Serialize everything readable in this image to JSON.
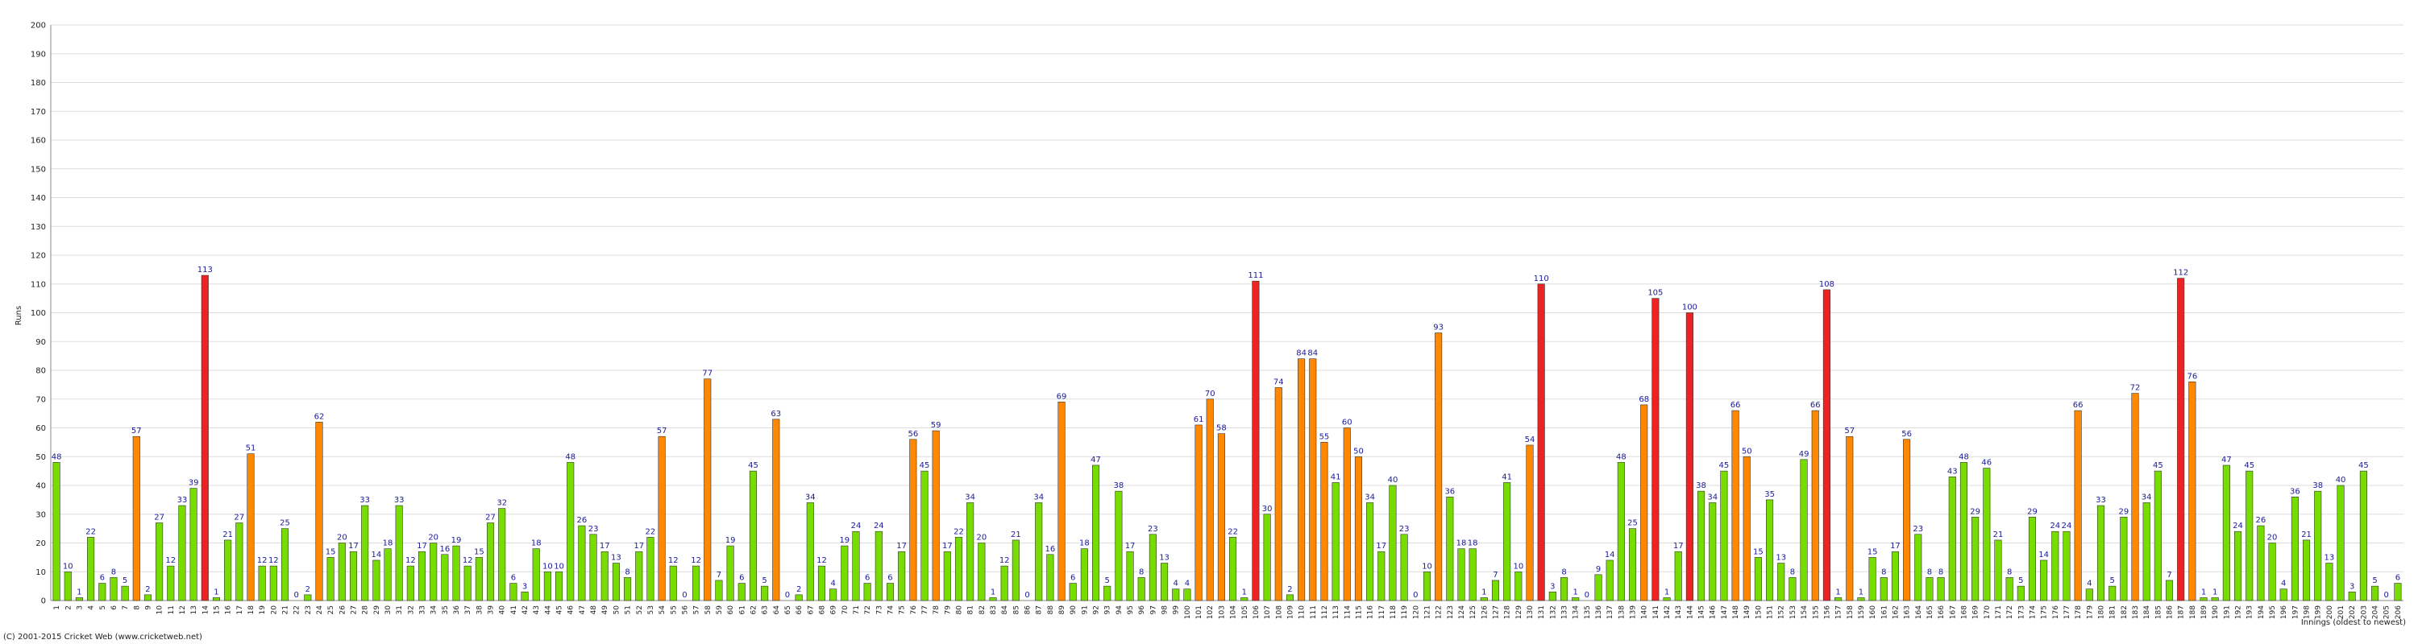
{
  "chart_data": {
    "type": "bar",
    "y_label": "Runs",
    "x_label": "Innings (oldest to newest)",
    "footer": "(C) 2001-2015 Cricket Web (www.cricketweb.net)",
    "categories": [
      1,
      2,
      3,
      4,
      5,
      6,
      7,
      8,
      9,
      10,
      11,
      12,
      13,
      14,
      15,
      16,
      17,
      18,
      19,
      20,
      21,
      22,
      23,
      24,
      25,
      26,
      27,
      28,
      29,
      30,
      31,
      32,
      33,
      34,
      35,
      36,
      37,
      38,
      39,
      40,
      41,
      42,
      43,
      44,
      45,
      46,
      47,
      48,
      49,
      50,
      51,
      52,
      53,
      54,
      55,
      56,
      57,
      58,
      59,
      60,
      61,
      62,
      63,
      64,
      65,
      66,
      67,
      68,
      69,
      70,
      71,
      72,
      73,
      74,
      75,
      76,
      77,
      78,
      79,
      80,
      81,
      82,
      83,
      84,
      85,
      86,
      87,
      88,
      89,
      90,
      91,
      92,
      93,
      94,
      95,
      96,
      97,
      98,
      99,
      100,
      101,
      102,
      103,
      104,
      105,
      106,
      107,
      108,
      109,
      110,
      111,
      112,
      113,
      114,
      115,
      116,
      117,
      118,
      119,
      120,
      121,
      122,
      123,
      124,
      125,
      126,
      127,
      128,
      129,
      130,
      131,
      132,
      133,
      134,
      135,
      136,
      137,
      138,
      139,
      140,
      141,
      142,
      143,
      144,
      145,
      146,
      147,
      148,
      149,
      150,
      151,
      152,
      153,
      154,
      155,
      156,
      157,
      158,
      159,
      160,
      161,
      162,
      163,
      164,
      165,
      166,
      167,
      168,
      169,
      170,
      171,
      172,
      173,
      174,
      175,
      176,
      177,
      178,
      179,
      180,
      181,
      182,
      183,
      184,
      185,
      186,
      187,
      188,
      189,
      190,
      191,
      192,
      193,
      194,
      195,
      196,
      197,
      198,
      199,
      200,
      201,
      202,
      203,
      204,
      205,
      206
    ],
    "values": [
      48,
      10,
      1,
      22,
      6,
      8,
      5,
      57,
      2,
      27,
      12,
      33,
      39,
      113,
      1,
      21,
      27,
      51,
      12,
      12,
      25,
      0,
      2,
      62,
      15,
      20,
      17,
      33,
      14,
      18,
      33,
      12,
      17,
      20,
      16,
      19,
      12,
      15,
      27,
      32,
      6,
      3,
      18,
      10,
      10,
      48,
      26,
      23,
      17,
      13,
      8,
      17,
      22,
      57,
      12,
      0,
      12,
      77,
      7,
      19,
      6,
      45,
      5,
      63,
      0,
      2,
      34,
      12,
      4,
      19,
      24,
      6,
      24,
      6,
      17,
      56,
      45,
      59,
      17,
      22,
      34,
      20,
      1,
      12,
      21,
      0,
      34,
      16,
      69,
      6,
      18,
      47,
      5,
      38,
      17,
      8,
      23,
      13,
      4,
      4,
      61,
      70,
      58,
      22,
      1,
      111,
      30,
      74,
      2,
      84,
      84,
      55,
      41,
      60,
      50,
      34,
      17,
      40,
      23,
      0,
      10,
      93,
      36,
      18,
      18,
      1,
      7,
      41,
      10,
      54,
      110,
      3,
      8,
      1,
      0,
      9,
      14,
      48,
      25,
      68,
      105,
      1,
      17,
      100,
      38,
      34,
      45,
      66,
      50,
      15,
      35,
      13,
      8,
      49,
      66,
      108,
      1,
      57,
      1,
      15,
      8,
      17,
      56,
      23,
      8,
      8,
      43,
      48,
      29,
      46,
      21,
      8,
      5,
      29,
      14,
      24,
      24,
      66,
      4,
      33,
      5,
      29,
      72,
      34,
      45,
      7,
      112,
      76,
      1,
      1,
      47,
      24,
      45,
      26,
      20,
      4,
      36,
      21,
      38,
      13,
      40,
      3,
      45,
      5,
      0,
      6
    ],
    "colors": [
      "#77dd00",
      "#77dd00",
      "#77dd00",
      "#77dd00",
      "#77dd00",
      "#77dd00",
      "#77dd00",
      "#ff8800",
      "#77dd00",
      "#77dd00",
      "#77dd00",
      "#77dd00",
      "#77dd00",
      "#ee2222",
      "#77dd00",
      "#77dd00",
      "#77dd00",
      "#ff8800",
      "#77dd00",
      "#77dd00",
      "#77dd00",
      "#77dd00",
      "#77dd00",
      "#ff8800",
      "#77dd00",
      "#77dd00",
      "#77dd00",
      "#77dd00",
      "#77dd00",
      "#77dd00",
      "#77dd00",
      "#77dd00",
      "#77dd00",
      "#77dd00",
      "#77dd00",
      "#77dd00",
      "#77dd00",
      "#77dd00",
      "#77dd00",
      "#77dd00",
      "#77dd00",
      "#77dd00",
      "#77dd00",
      "#77dd00",
      "#77dd00",
      "#77dd00",
      "#77dd00",
      "#77dd00",
      "#77dd00",
      "#77dd00",
      "#77dd00",
      "#77dd00",
      "#77dd00",
      "#ff8800",
      "#77dd00",
      "#77dd00",
      "#77dd00",
      "#ff8800",
      "#77dd00",
      "#77dd00",
      "#77dd00",
      "#77dd00",
      "#77dd00",
      "#ff8800",
      "#77dd00",
      "#77dd00",
      "#77dd00",
      "#77dd00",
      "#77dd00",
      "#77dd00",
      "#77dd00",
      "#77dd00",
      "#77dd00",
      "#77dd00",
      "#77dd00",
      "#ff8800",
      "#77dd00",
      "#ff8800",
      "#77dd00",
      "#77dd00",
      "#77dd00",
      "#77dd00",
      "#77dd00",
      "#77dd00",
      "#77dd00",
      "#77dd00",
      "#77dd00",
      "#77dd00",
      "#ff8800",
      "#77dd00",
      "#77dd00",
      "#77dd00",
      "#77dd00",
      "#77dd00",
      "#77dd00",
      "#77dd00",
      "#77dd00",
      "#77dd00",
      "#77dd00",
      "#77dd00",
      "#ff8800",
      "#ff8800",
      "#ff8800",
      "#77dd00",
      "#77dd00",
      "#ee2222",
      "#77dd00",
      "#ff8800",
      "#77dd00",
      "#ff8800",
      "#ff8800",
      "#ff8800",
      "#77dd00",
      "#ff8800",
      "#ff8800",
      "#77dd00",
      "#77dd00",
      "#77dd00",
      "#77dd00",
      "#77dd00",
      "#77dd00",
      "#ff8800",
      "#77dd00",
      "#77dd00",
      "#77dd00",
      "#77dd00",
      "#77dd00",
      "#77dd00",
      "#77dd00",
      "#ff8800",
      "#ee2222",
      "#77dd00",
      "#77dd00",
      "#77dd00",
      "#77dd00",
      "#77dd00",
      "#77dd00",
      "#77dd00",
      "#77dd00",
      "#ff8800",
      "#ee2222",
      "#77dd00",
      "#77dd00",
      "#ee2222",
      "#77dd00",
      "#77dd00",
      "#77dd00",
      "#ff8800",
      "#ff8800",
      "#77dd00",
      "#77dd00",
      "#77dd00",
      "#77dd00",
      "#77dd00",
      "#ff8800",
      "#ee2222",
      "#77dd00",
      "#ff8800",
      "#77dd00",
      "#77dd00",
      "#77dd00",
      "#77dd00",
      "#ff8800",
      "#77dd00",
      "#77dd00",
      "#77dd00",
      "#77dd00",
      "#77dd00",
      "#77dd00",
      "#77dd00",
      "#77dd00",
      "#77dd00",
      "#77dd00",
      "#77dd00",
      "#77dd00",
      "#77dd00",
      "#77dd00",
      "#ff8800",
      "#77dd00",
      "#77dd00",
      "#77dd00",
      "#77dd00",
      "#ff8800",
      "#77dd00",
      "#77dd00",
      "#77dd00",
      "#ee2222",
      "#ff8800",
      "#77dd00",
      "#77dd00",
      "#77dd00",
      "#77dd00",
      "#77dd00",
      "#77dd00",
      "#77dd00",
      "#77dd00",
      "#77dd00",
      "#77dd00",
      "#77dd00",
      "#77dd00",
      "#77dd00",
      "#77dd00",
      "#77dd00",
      "#77dd00",
      "#77dd00",
      "#77dd00"
    ],
    "ylim": [
      0,
      200
    ],
    "yticks": [
      0,
      10,
      20,
      30,
      40,
      50,
      60,
      70,
      80,
      90,
      100,
      110,
      120,
      130,
      140,
      150,
      160,
      170,
      180,
      190,
      200
    ],
    "grid": true
  }
}
